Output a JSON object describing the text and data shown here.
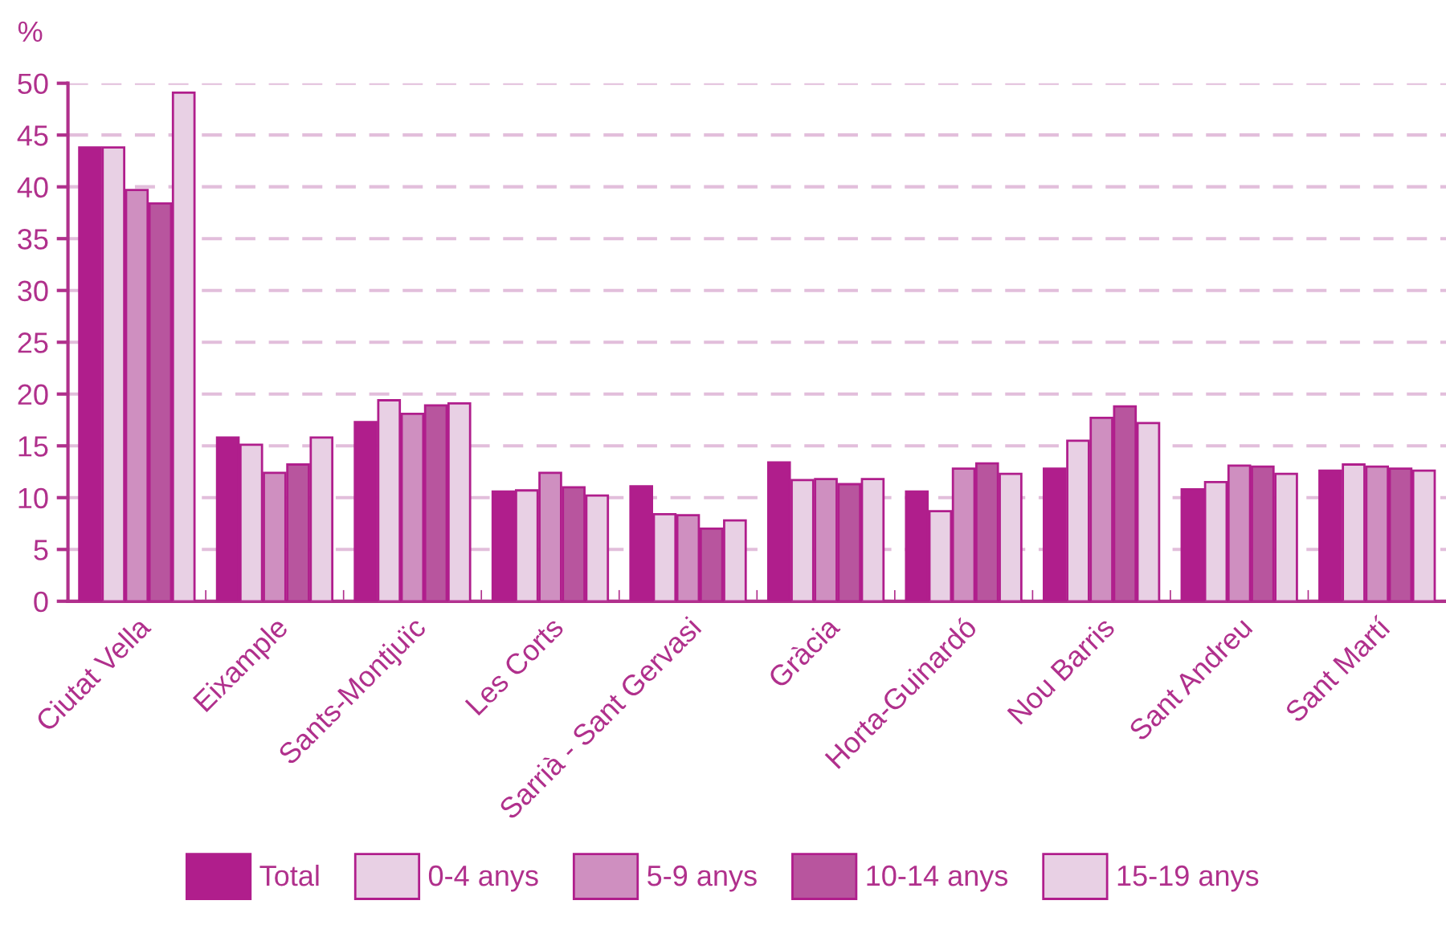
{
  "chart_data": {
    "type": "bar",
    "ylabel": "%",
    "categories": [
      "Ciutat Vella",
      "Eixample",
      "Sants-Montjuïc",
      "Les Corts",
      "Sarrià - Sant Gervasi",
      "Gràcia",
      "Horta-Guinardó",
      "Nou Barris",
      "Sant Andreu",
      "Sant Martí"
    ],
    "series": [
      {
        "name": "Total",
        "color": "#b01e8c",
        "values": [
          43.8,
          15.8,
          17.3,
          10.6,
          11.1,
          13.4,
          10.6,
          12.8,
          10.8,
          12.6
        ]
      },
      {
        "name": "0-4 anys",
        "color": "#e8d0e4",
        "values": [
          43.8,
          15.1,
          19.4,
          10.7,
          8.4,
          11.7,
          8.7,
          15.5,
          11.5,
          13.2
        ]
      },
      {
        "name": "5-9 anys",
        "color": "#cf8fc0",
        "values": [
          39.7,
          12.4,
          18.1,
          12.4,
          8.3,
          11.8,
          12.8,
          17.7,
          13.1,
          13.0
        ]
      },
      {
        "name": "10-14 anys",
        "color": "#b8559e",
        "values": [
          38.4,
          13.2,
          18.9,
          11.0,
          7.0,
          11.3,
          13.3,
          18.8,
          13.0,
          12.8
        ]
      },
      {
        "name": "15-19 anys",
        "color": "#e8d0e4",
        "values": [
          49.1,
          15.8,
          19.1,
          10.2,
          7.8,
          11.8,
          12.3,
          17.2,
          12.3,
          12.6
        ]
      }
    ],
    "ylim": [
      0,
      50
    ],
    "yticks": [
      0,
      5,
      10,
      15,
      20,
      25,
      30,
      35,
      40,
      45,
      50
    ],
    "grid": "y",
    "legend": "bottom"
  }
}
